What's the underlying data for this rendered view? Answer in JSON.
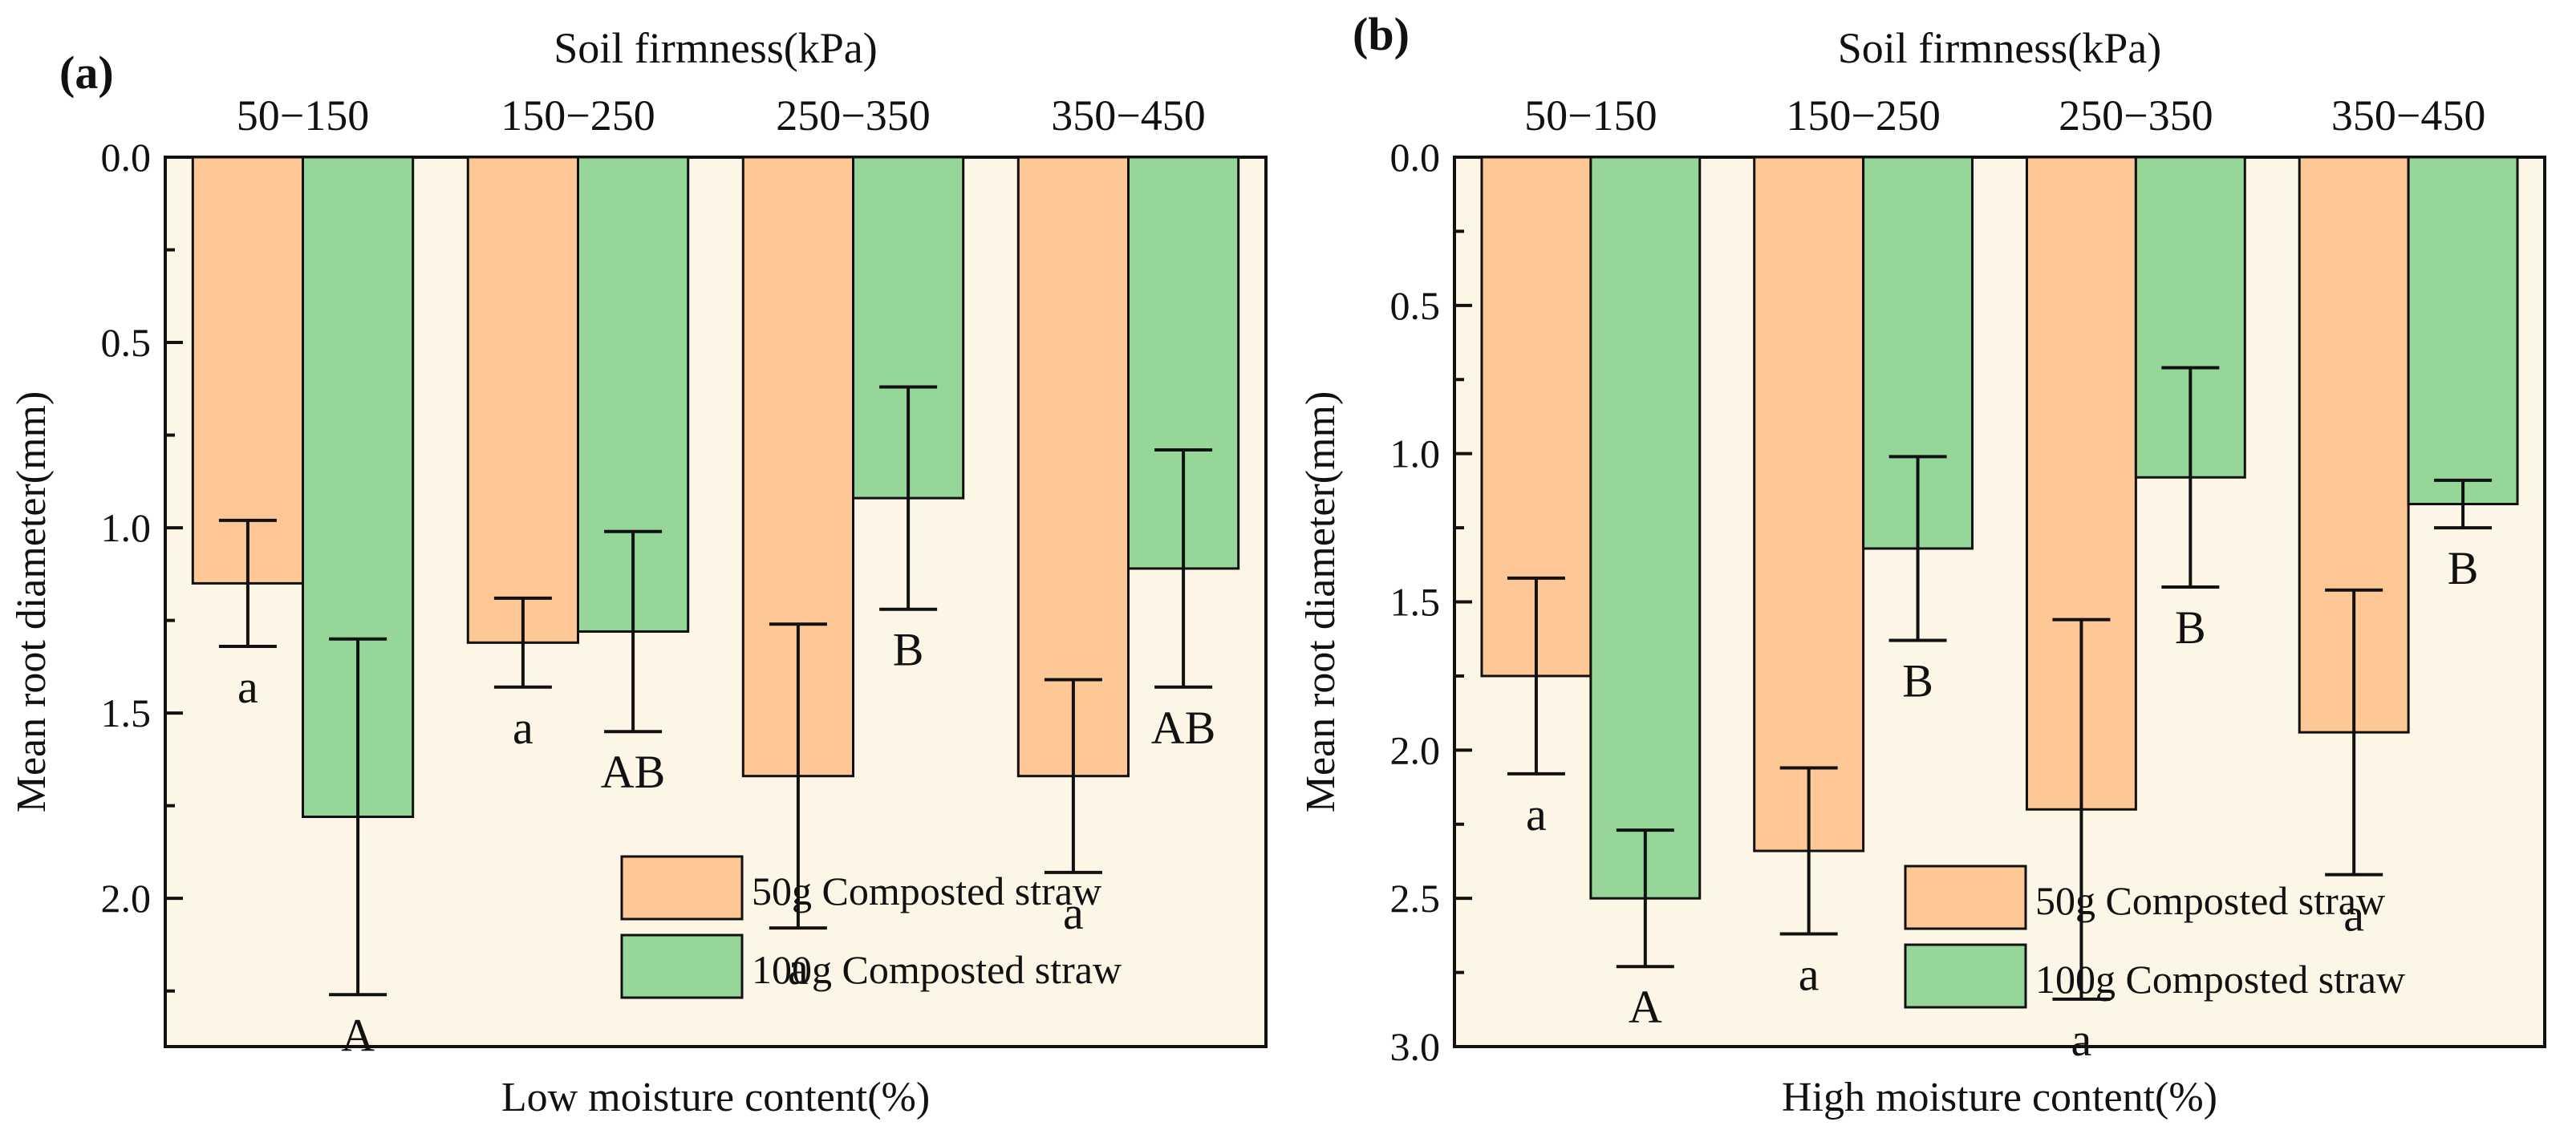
{
  "colors": {
    "series_50g": "#fdc896",
    "series_100g": "#97d699",
    "background": "#fdf5e6"
  },
  "chart_data": [
    {
      "type": "bar",
      "panel_label": "(a)",
      "top_axis_title": "Soil firmness(kPa)",
      "xlabel": "Low moisture content(%)",
      "ylabel": "Mean root diameter(mm)",
      "ylim": [
        0,
        2.4
      ],
      "y_inverted": true,
      "yticks": [
        "0.0",
        "0.5",
        "1.0",
        "1.5",
        "2.0"
      ],
      "categories": [
        "50−150",
        "150−250",
        "250−350",
        "350−450"
      ],
      "legend_position": "bottom-right",
      "series": [
        {
          "name": "50g Composted straw",
          "values": [
            1.15,
            1.31,
            1.67,
            1.67
          ],
          "error": [
            0.17,
            0.12,
            0.41,
            0.26
          ],
          "labels": [
            "a",
            "a",
            "a",
            "a"
          ]
        },
        {
          "name": "100g Composted straw",
          "values": [
            1.78,
            1.28,
            0.92,
            1.11
          ],
          "error": [
            0.48,
            0.27,
            0.3,
            0.32
          ],
          "labels": [
            "A",
            "AB",
            "B",
            "AB"
          ]
        }
      ]
    },
    {
      "type": "bar",
      "panel_label": "(b)",
      "top_axis_title": "Soil firmness(kPa)",
      "xlabel": "High moisture content(%)",
      "ylabel": "Mean root diameter(mm)",
      "ylim": [
        0,
        3.0
      ],
      "y_inverted": true,
      "yticks": [
        "0.0",
        "0.5",
        "1.0",
        "1.5",
        "2.0",
        "2.5",
        "3.0"
      ],
      "categories": [
        "50−150",
        "150−250",
        "250−350",
        "350−450"
      ],
      "legend_position": "bottom-right",
      "series": [
        {
          "name": "50g Composted straw",
          "values": [
            1.75,
            2.34,
            2.2,
            1.94
          ],
          "error": [
            0.33,
            0.28,
            0.64,
            0.48
          ],
          "labels": [
            "a",
            "a",
            "a",
            "a"
          ]
        },
        {
          "name": "100g Composted straw",
          "values": [
            2.5,
            1.32,
            1.08,
            1.17
          ],
          "error": [
            0.23,
            0.31,
            0.37,
            0.08
          ],
          "labels": [
            "A",
            "B",
            "B",
            "B"
          ]
        }
      ]
    }
  ]
}
